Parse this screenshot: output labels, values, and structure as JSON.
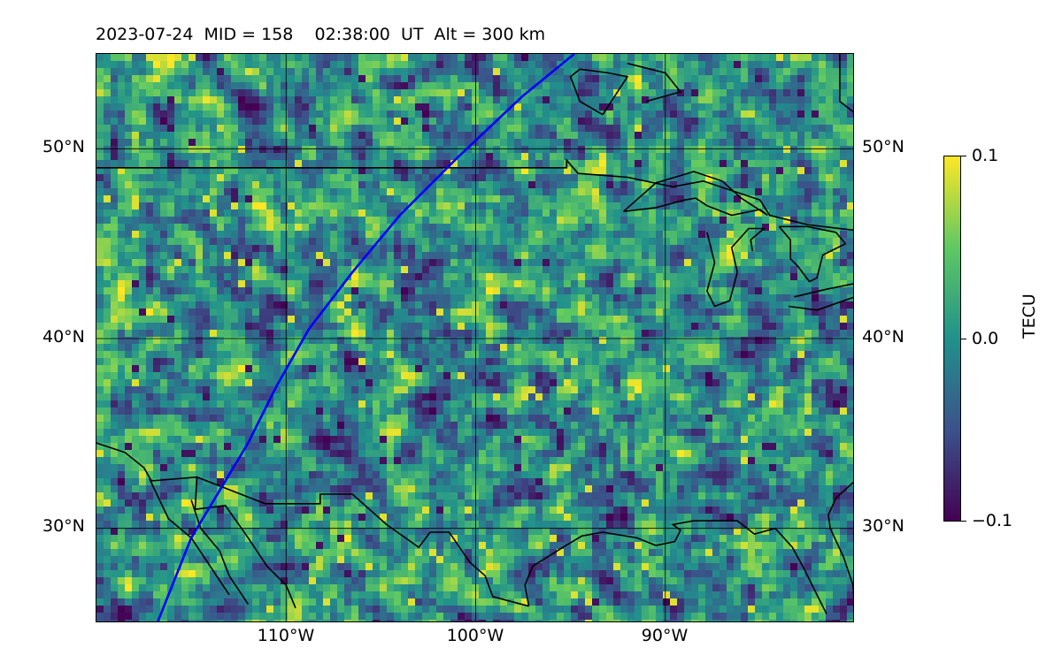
{
  "title": "2023-07-24  MID = 158    02:38:00  UT  Alt = 300 km",
  "map": {
    "projection": "lat-lon",
    "lon_range": [
      -120,
      -80
    ],
    "lat_range": [
      25,
      55
    ],
    "lat_ticks": [
      {
        "value": 50,
        "label": "50°N"
      },
      {
        "value": 40,
        "label": "40°N"
      },
      {
        "value": 30,
        "label": "30°N"
      }
    ],
    "lon_ticks": [
      {
        "value": -110,
        "label": "110°W"
      },
      {
        "value": -100,
        "label": "100°W"
      },
      {
        "value": -90,
        "label": "90°W"
      }
    ],
    "gridlines": true,
    "field": "TEC perturbation",
    "track_color": "#0000ff",
    "coastline_color": "#000000"
  },
  "colorbar": {
    "label": "TECU",
    "colormap": "viridis",
    "min": -0.1,
    "max": 0.1,
    "ticks": [
      {
        "value": 0.1,
        "label": "0.1"
      },
      {
        "value": 0.0,
        "label": "0.0"
      },
      {
        "value": -0.1,
        "label": "−0.1"
      }
    ],
    "colors": [
      "#440154",
      "#3b528b",
      "#21918c",
      "#5ec962",
      "#fde725"
    ]
  }
}
